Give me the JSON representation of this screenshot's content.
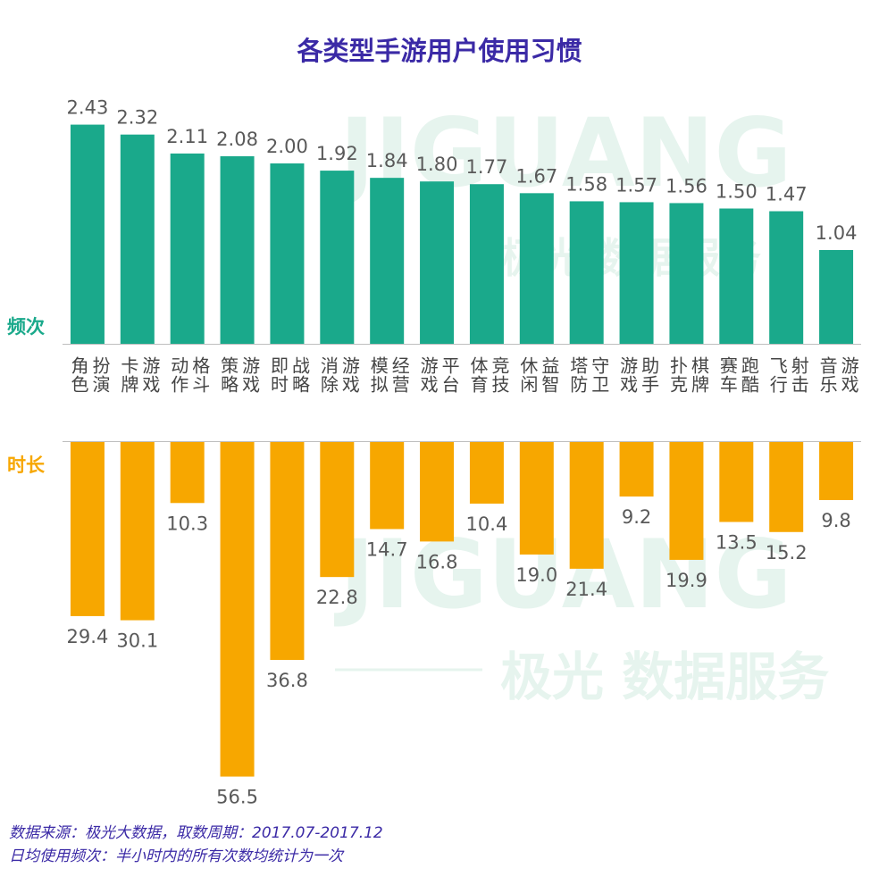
{
  "title": "各类型手游用户使用习惯",
  "watermark": {
    "wordmark": "JIGUANG",
    "brand": "极光 数据服务"
  },
  "chart_data": {
    "type": "bar",
    "categories": [
      "角色扮演",
      "卡牌游戏",
      "动作格斗",
      "策略游戏",
      "即时战略",
      "消除游戏",
      "模拟经营",
      "游戏平台",
      "体育竞技",
      "休闲益智",
      "塔防守卫",
      "游戏助手",
      "扑克棋牌",
      "赛车跑酷",
      "飞行射击",
      "音乐游戏"
    ],
    "series": [
      {
        "name": "频次",
        "color": "#1aa98b",
        "values": [
          2.43,
          2.32,
          2.11,
          2.08,
          2.0,
          1.92,
          1.84,
          1.8,
          1.77,
          1.67,
          1.58,
          1.57,
          1.56,
          1.5,
          1.47,
          1.04
        ],
        "labels": [
          "2.43",
          "2.32",
          "2.11",
          "2.08",
          "2.00",
          "1.92",
          "1.84",
          "1.80",
          "1.77",
          "1.67",
          "1.58",
          "1.57",
          "1.56",
          "1.50",
          "1.47",
          "1.04"
        ]
      },
      {
        "name": "时长",
        "color": "#f7a700",
        "values": [
          29.4,
          30.1,
          10.3,
          56.5,
          36.8,
          22.8,
          14.7,
          16.8,
          10.4,
          19.0,
          21.4,
          9.2,
          19.9,
          13.5,
          15.2,
          9.8
        ],
        "labels": [
          "29.4",
          "30.1",
          "10.3",
          "56.5",
          "36.8",
          "22.8",
          "14.7",
          "16.8",
          "10.4",
          "19.0",
          "21.4",
          "9.2",
          "19.9",
          "13.5",
          "15.2",
          "9.8"
        ]
      }
    ]
  },
  "footnotes": {
    "source": "数据来源：极光大数据，取数周期：2017.07-2017.12",
    "definition": "日均使用频次：半小时内的所有次数均统计为一次"
  }
}
